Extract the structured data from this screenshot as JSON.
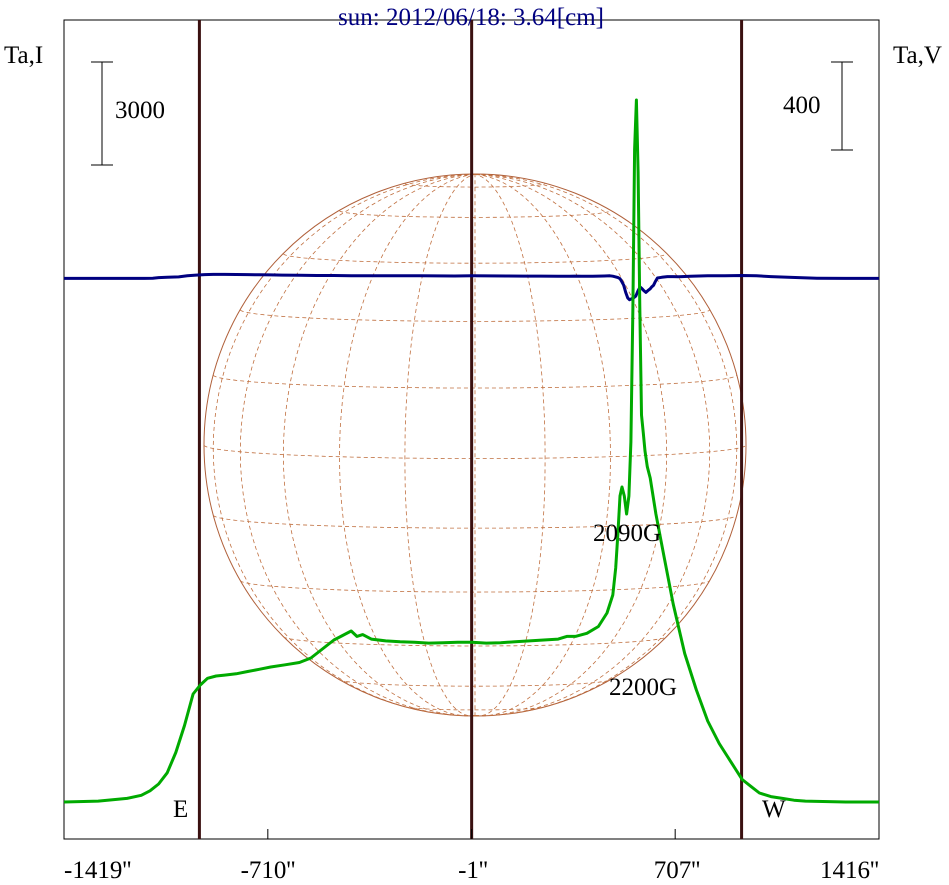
{
  "chart_data": {
    "type": "line",
    "title": "sun: 2012/06/18: 3.64[cm]",
    "left_axis_label": "Ta,I",
    "right_axis_label": "Ta,V",
    "xlim": [
      -1419,
      1416
    ],
    "xticks": [
      {
        "value": -1419,
        "label": "-1419''"
      },
      {
        "value": -710,
        "label": "-710''"
      },
      {
        "value": -1,
        "label": "-1''"
      },
      {
        "value": 707,
        "label": "707''"
      },
      {
        "value": 1416,
        "label": "1416''"
      }
    ],
    "limb_lines": [
      -948,
      -1,
      938
    ],
    "limb_labels": [
      {
        "text": "E",
        "x": -1000
      },
      {
        "text": "W",
        "x": 1060
      }
    ],
    "scale_bars": [
      {
        "label": "3000",
        "side": "left"
      },
      {
        "label": "400",
        "side": "right"
      }
    ],
    "annotations": [
      {
        "text": "2090G",
        "x": 560
      },
      {
        "text": "2200G",
        "x": 615
      }
    ],
    "series": [
      {
        "name": "",
        "color": "#000080",
        "axis": "left",
        "x": [
          -1419,
          -1140,
          -1110,
          -1090,
          -1060,
          -1020,
          -990,
          -960,
          -930,
          -900,
          -860,
          -820,
          -780,
          -740,
          -700,
          -660,
          -600,
          -540,
          -480,
          -420,
          -360,
          -300,
          -240,
          -180,
          -120,
          -60,
          0,
          60,
          120,
          180,
          240,
          300,
          340,
          360,
          380,
          420,
          460,
          480,
          490,
          500,
          508,
          515,
          520,
          528,
          535,
          542,
          548,
          555,
          562,
          570,
          578,
          585,
          592,
          598,
          605,
          612,
          620,
          625,
          632,
          638,
          645,
          660,
          680,
          700,
          720,
          760,
          820,
          880,
          940,
          990,
          1040,
          1100,
          1150,
          1200,
          1300,
          1416
        ],
        "y": [
          -10,
          -10,
          -5,
          10,
          20,
          30,
          60,
          80,
          95,
          100,
          100,
          96,
          93,
          90,
          85,
          80,
          75,
          70,
          68,
          65,
          63,
          62,
          60,
          62,
          58,
          56,
          60,
          58,
          55,
          52,
          52,
          50,
          48,
          52,
          48,
          50,
          55,
          60,
          50,
          30,
          10,
          -20,
          -80,
          -200,
          -400,
          -550,
          -600,
          -580,
          -550,
          -500,
          -350,
          -250,
          -300,
          -350,
          -400,
          -350,
          -300,
          -250,
          -200,
          -100,
          0,
          20,
          40,
          40,
          35,
          50,
          60,
          65,
          70,
          60,
          40,
          20,
          5,
          -5,
          -10,
          -10
        ]
      },
      {
        "name": "",
        "color": "#00aa00",
        "axis": "right",
        "x": [
          -1419,
          -1300,
          -1250,
          -1200,
          -1150,
          -1120,
          -1090,
          -1060,
          -1030,
          -1000,
          -970,
          -945,
          -920,
          -890,
          -860,
          -820,
          -780,
          -740,
          -700,
          -650,
          -600,
          -560,
          -520,
          -480,
          -450,
          -420,
          -400,
          -380,
          -350,
          -300,
          -250,
          -200,
          -150,
          -100,
          -50,
          0,
          50,
          100,
          150,
          200,
          250,
          300,
          330,
          360,
          400,
          440,
          470,
          490,
          500,
          508,
          515,
          522,
          530,
          538,
          546,
          553,
          560,
          566,
          572,
          578,
          584,
          590,
          596,
          602,
          610,
          620,
          640,
          670,
          700,
          740,
          780,
          820,
          860,
          890,
          920,
          940,
          970,
          1000,
          1040,
          1080,
          1120,
          1160,
          1220,
          1300,
          1380,
          1416
        ],
        "y": [
          0,
          2,
          5,
          8,
          15,
          25,
          40,
          65,
          110,
          170,
          240,
          260,
          275,
          280,
          282,
          285,
          290,
          295,
          300,
          305,
          310,
          320,
          340,
          360,
          370,
          380,
          368,
          372,
          362,
          358,
          356,
          355,
          353,
          354,
          355,
          355,
          353,
          354,
          356,
          358,
          360,
          362,
          368,
          368,
          375,
          390,
          420,
          460,
          520,
          600,
          680,
          700,
          680,
          640,
          680,
          800,
          1100,
          1450,
          1560,
          1400,
          1100,
          860,
          820,
          780,
          745,
          720,
          640,
          540,
          440,
          330,
          250,
          180,
          130,
          100,
          70,
          50,
          35,
          20,
          12,
          8,
          4,
          2,
          1,
          0,
          0,
          0
        ]
      }
    ]
  }
}
